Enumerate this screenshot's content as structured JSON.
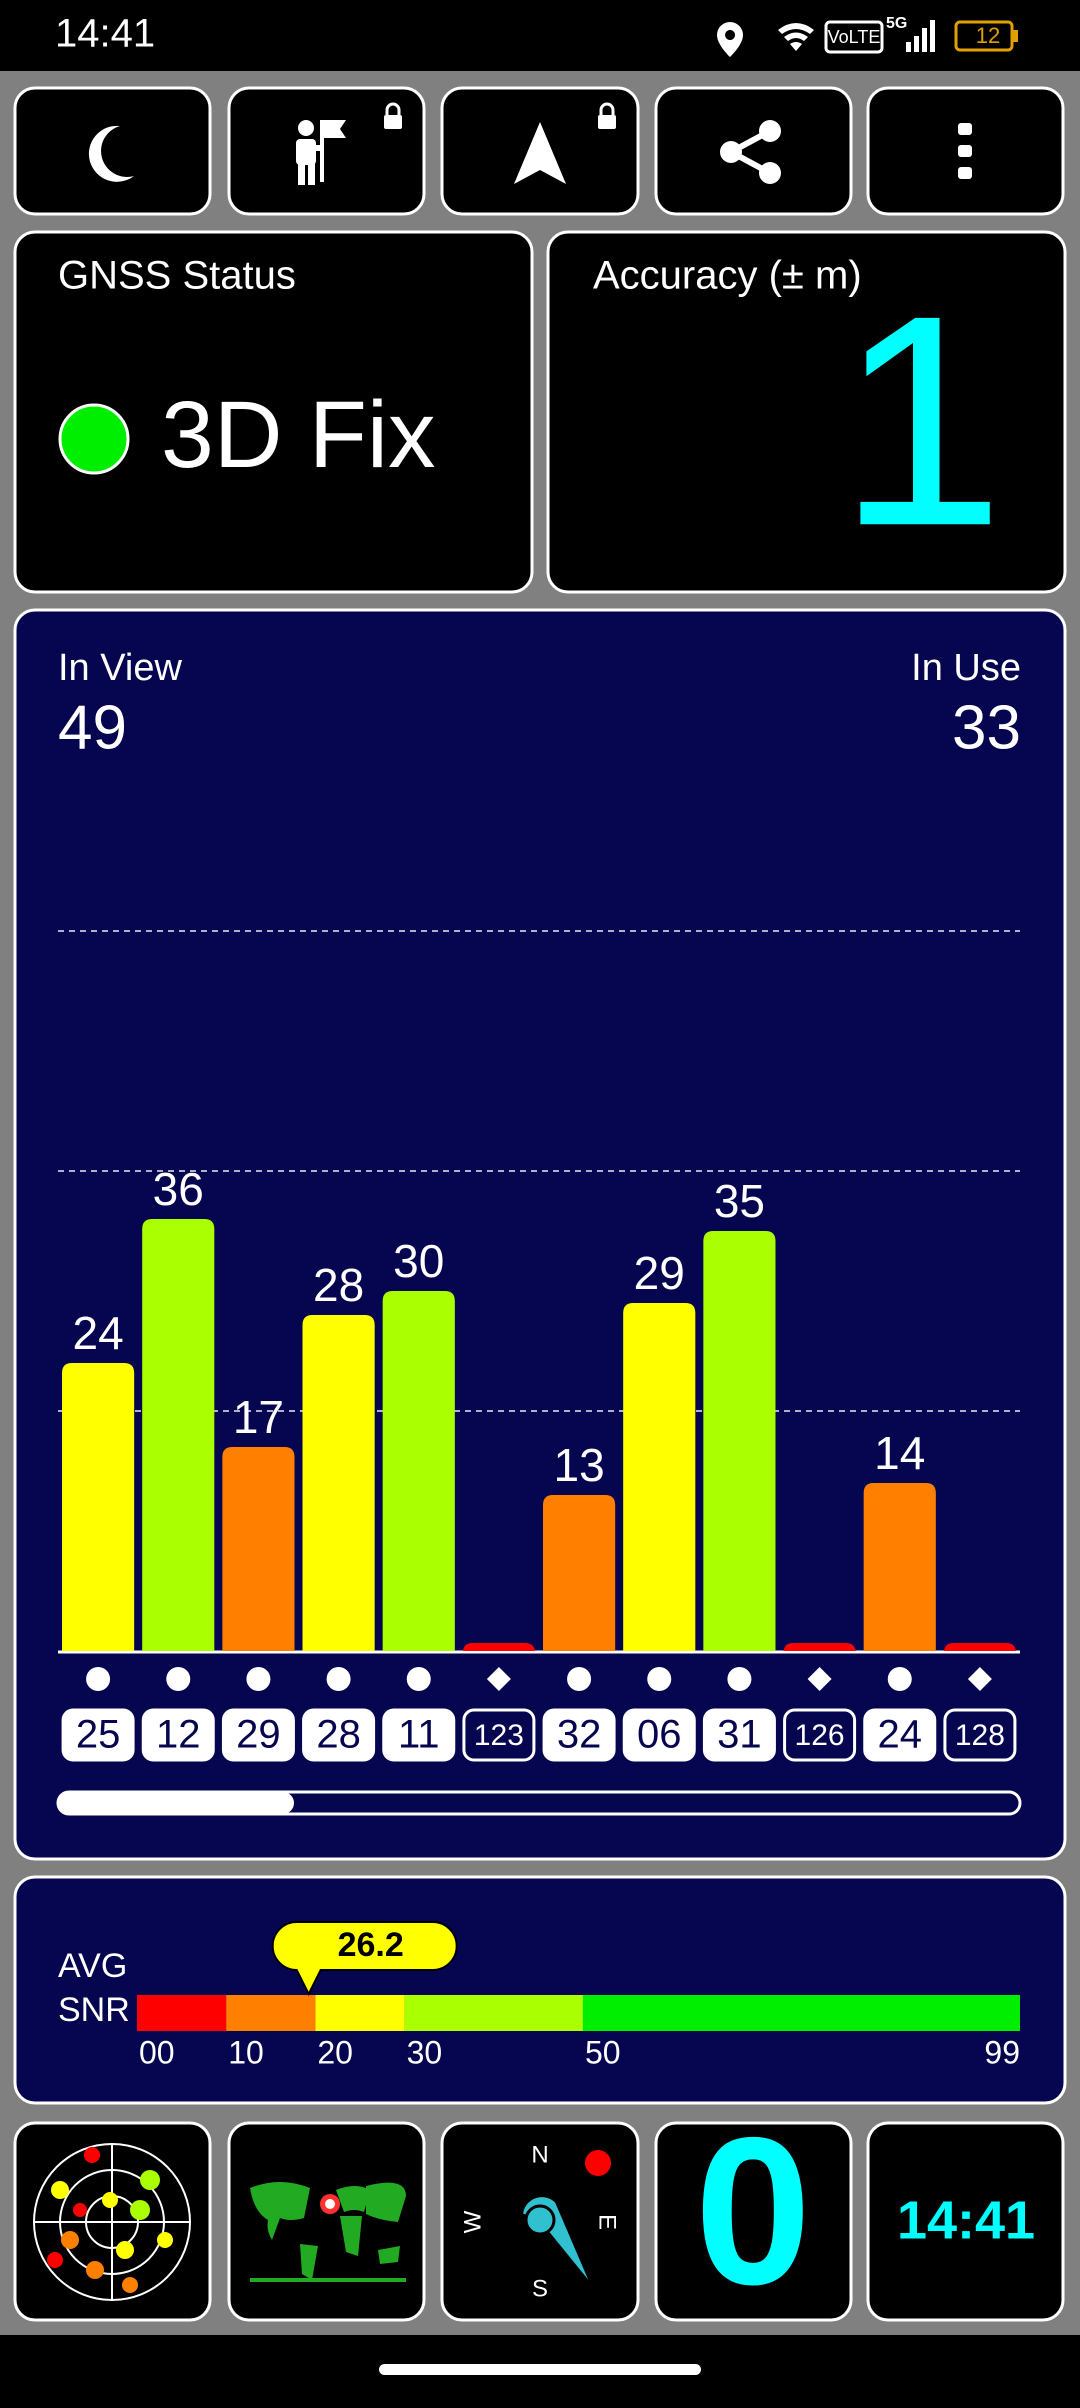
{
  "status_bar": {
    "time": "14:41",
    "battery": "12"
  },
  "gnss_status": {
    "title": "GNSS Status",
    "fix": "3D Fix",
    "color": "#00ee00"
  },
  "accuracy": {
    "title": "Accuracy (± m)",
    "value": "1"
  },
  "satellites": {
    "in_view_label": "In View",
    "in_view": 49,
    "in_use_label": "In Use",
    "in_use": 33,
    "chart_data": {
      "type": "bar",
      "categories": [
        "25",
        "12",
        "29",
        "28",
        "11",
        "123",
        "32",
        "06",
        "31",
        "126",
        "24",
        "128"
      ],
      "markers": [
        "circle",
        "circle",
        "circle",
        "circle",
        "circle",
        "diamond",
        "circle",
        "circle",
        "circle",
        "diamond",
        "circle",
        "diamond"
      ],
      "values": [
        24,
        36,
        17,
        28,
        30,
        0,
        13,
        29,
        35,
        0,
        14,
        0
      ],
      "ylim": [
        0,
        66
      ],
      "yticks": [
        20,
        40,
        60
      ],
      "grid": true
    }
  },
  "snr": {
    "labels": [
      "AVG",
      "SNR"
    ],
    "average": 26.2,
    "scale": {
      "range": [
        0,
        99
      ],
      "ticks": [
        {
          "value": 0,
          "label": "00"
        },
        10,
        20,
        30,
        50,
        99
      ],
      "colors": [
        "#ff0000",
        "#ff8000",
        "#ffff00",
        "#aaff00",
        "#00ee00"
      ]
    }
  },
  "tiles": {
    "compass": [
      "N",
      "E",
      "S",
      "W"
    ],
    "speed": 0,
    "clock": "14:41"
  }
}
